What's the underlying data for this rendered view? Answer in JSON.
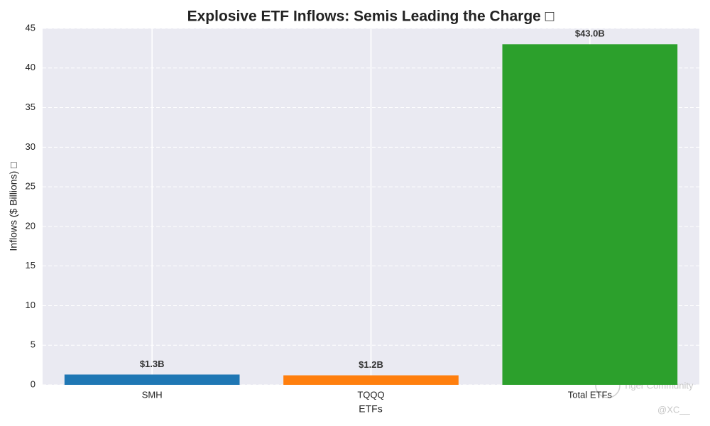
{
  "chart_data": {
    "type": "bar",
    "title": "Explosive ETF Inflows: Semis Leading the Charge □",
    "x_label": "ETFs",
    "y_label": "Inflows ($ Billions) □",
    "categories": [
      "SMH",
      "TQQQ",
      "Total ETFs"
    ],
    "values": [
      1.3,
      1.2,
      43.0
    ],
    "value_labels": [
      "$1.3B",
      "$1.2B",
      "$43.0B"
    ],
    "colors": [
      "#1f77b4",
      "#ff7f0e",
      "#2ca02c"
    ],
    "ylim": [
      0,
      45
    ],
    "yticks": [
      0,
      5,
      10,
      15,
      20,
      25,
      30,
      35,
      40,
      45
    ],
    "grid": true
  },
  "watermark": {
    "brand": "Tiger Community",
    "handle": "@XC__"
  }
}
